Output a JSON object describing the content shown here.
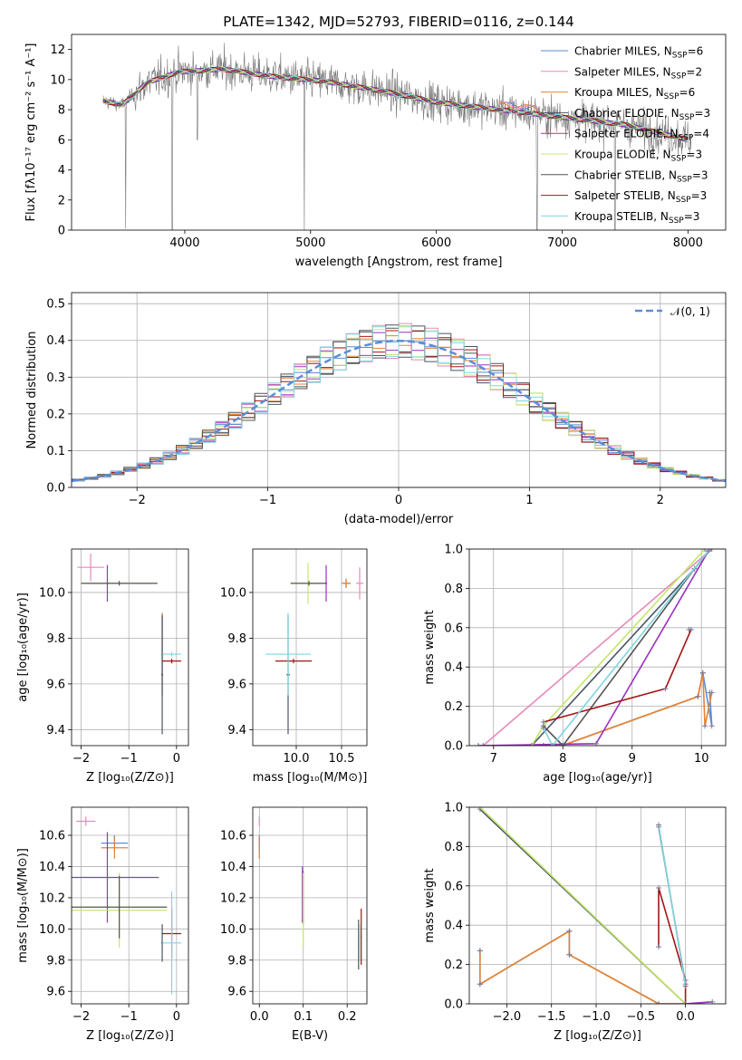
{
  "title": "PLATE=1342, MJD=52793, FIBERID=0116, z=0.144",
  "colors": {
    "chabrier_miles": "#5a8ed9",
    "salpeter_miles": "#e889b8",
    "kroupa_miles": "#e8822e",
    "chabrier_elodie": "#4b5565",
    "salpeter_elodie": "#9b33bf",
    "kroupa_elodie": "#c3e86a",
    "chabrier_stelib": "#555555",
    "salpeter_stelib": "#a51414",
    "kroupa_stelib": "#7fd6e0",
    "observed_spectrum": "#777777",
    "normal_curve": "#5a8ed9",
    "grid": "#b0b0b0"
  },
  "chart_data": [
    {
      "id": "spectrum",
      "type": "line",
      "xlabel": "wavelength [Angstrom, rest frame]",
      "ylabel": "Flux [fλ10⁻¹⁷ erg cm⁻² s⁻¹ A⁻¹]",
      "xlim": [
        3100,
        8300
      ],
      "ylim": [
        0,
        13
      ],
      "xticks": [
        4000,
        5000,
        6000,
        7000,
        8000
      ],
      "yticks": [
        0,
        2,
        4,
        6,
        8,
        10,
        12
      ],
      "grid": false,
      "legend_position": "top-right",
      "legend": [
        {
          "base": "Chabrier MILES, N",
          "sub": "SSP",
          "tail": "=6",
          "color_key": "chabrier_miles"
        },
        {
          "base": "Salpeter MILES, N",
          "sub": "SSP",
          "tail": "=2",
          "color_key": "salpeter_miles"
        },
        {
          "base": "Kroupa MILES, N",
          "sub": "SSP",
          "tail": "=6",
          "color_key": "kroupa_miles"
        },
        {
          "base": "Chabrier ELODIE, N",
          "sub": "SSP",
          "tail": "=3",
          "color_key": "chabrier_elodie"
        },
        {
          "base": "Salpeter ELODIE, N",
          "sub": "SSP",
          "tail": "=4",
          "color_key": "salpeter_elodie"
        },
        {
          "base": "Kroupa ELODIE, N",
          "sub": "SSP",
          "tail": "=3",
          "color_key": "kroupa_elodie"
        },
        {
          "base": "Chabrier STELIB, N",
          "sub": "SSP",
          "tail": "=3",
          "color_key": "chabrier_stelib"
        },
        {
          "base": "Salpeter STELIB, N",
          "sub": "SSP",
          "tail": "=3",
          "color_key": "salpeter_stelib"
        },
        {
          "base": "Kroupa STELIB, N",
          "sub": "SSP",
          "tail": "=3",
          "color_key": "kroupa_stelib"
        }
      ],
      "continuum_knots": [
        [
          3350,
          8.6
        ],
        [
          3500,
          8.3
        ],
        [
          3700,
          9.8
        ],
        [
          3950,
          10.5
        ],
        [
          4300,
          10.7
        ],
        [
          4700,
          10.2
        ],
        [
          5100,
          9.9
        ],
        [
          5600,
          9.2
        ],
        [
          6000,
          8.5
        ],
        [
          6500,
          8.0
        ],
        [
          7000,
          7.5
        ],
        [
          7500,
          7.0
        ],
        [
          8000,
          6.0
        ]
      ],
      "absorption_dips": [
        [
          3530,
          0.1
        ],
        [
          3900,
          0.0
        ],
        [
          4100,
          6.0
        ],
        [
          4950,
          0.0
        ],
        [
          6800,
          0.0
        ],
        [
          7420,
          0.0
        ]
      ]
    },
    {
      "id": "residuals",
      "type": "bar",
      "xlabel": "(data-model)/error",
      "ylabel": "Normed distribution",
      "xlim": [
        -2.5,
        2.5
      ],
      "ylim": [
        0,
        0.53
      ],
      "xticks": [
        -2,
        -1,
        0,
        1,
        2
      ],
      "yticks": [
        0.0,
        0.1,
        0.2,
        0.3,
        0.4,
        0.5
      ],
      "grid": true,
      "legend_position": "top-right",
      "legend_label": "𝒩(0, 1)",
      "bin_width": 0.1,
      "normal_mean": 0,
      "normal_sigma": 1
    },
    {
      "id": "age_vs_z",
      "type": "scatter",
      "xlabel": "Z [log₁₀(Z/Z⊙)]",
      "ylabel": "age  [log₁₀(age/yr)]",
      "xlim": [
        -2.2,
        0.25
      ],
      "ylim": [
        9.33,
        10.19
      ],
      "xticks": [
        -2,
        -1,
        0
      ],
      "yticks": [
        9.4,
        9.6,
        9.8,
        10.0
      ],
      "grid": true,
      "crosses": [
        {
          "key": "chabrier_miles",
          "x": -0.3,
          "xerr": 0.02,
          "y": 9.73,
          "yerr": 0.18
        },
        {
          "key": "salpeter_miles",
          "x": -1.8,
          "xerr": 0.28,
          "y": 10.11,
          "yerr": 0.06
        },
        {
          "key": "kroupa_miles",
          "x": -0.3,
          "xerr": 0.02,
          "y": 9.73,
          "yerr": 0.18
        },
        {
          "key": "chabrier_elodie",
          "x": -0.3,
          "xerr": 0.02,
          "y": 9.64,
          "yerr": 0.26
        },
        {
          "key": "salpeter_elodie",
          "x": -1.45,
          "xerr": 0.05,
          "y": 10.04,
          "yerr": 0.08
        },
        {
          "key": "kroupa_elodie",
          "x": -1.2,
          "xerr": 0.8,
          "y": 10.04,
          "yerr": 0.01
        },
        {
          "key": "chabrier_stelib",
          "x": -1.2,
          "xerr": 0.8,
          "y": 10.04,
          "yerr": 0.01
        },
        {
          "key": "salpeter_stelib",
          "x": -0.1,
          "xerr": 0.2,
          "y": 9.7,
          "yerr": 0.01
        },
        {
          "key": "kroupa_stelib",
          "x": -0.1,
          "xerr": 0.2,
          "y": 9.73,
          "yerr": 0.01
        }
      ]
    },
    {
      "id": "age_vs_mass",
      "type": "scatter",
      "xlabel": "mass [log₁₀(M/M⊙)]",
      "ylabel": "",
      "xlim": [
        9.52,
        10.78
      ],
      "ylim": [
        9.33,
        10.19
      ],
      "xticks": [
        10.0,
        10.5
      ],
      "yticks": [
        9.4,
        9.6,
        9.8,
        10.0
      ],
      "grid": true,
      "crosses": [
        {
          "key": "chabrier_miles",
          "x": 10.55,
          "xerr": 0.05,
          "y": 10.04,
          "yerr": 0.02
        },
        {
          "key": "salpeter_miles",
          "x": 10.7,
          "xerr": 0.04,
          "y": 10.04,
          "yerr": 0.07
        },
        {
          "key": "kroupa_miles",
          "x": 10.55,
          "xerr": 0.05,
          "y": 10.04,
          "yerr": 0.02
        },
        {
          "key": "chabrier_elodie",
          "x": 9.91,
          "xerr": 0.02,
          "y": 9.64,
          "yerr": 0.26
        },
        {
          "key": "salpeter_elodie",
          "x": 10.33,
          "xerr": 0.01,
          "y": 10.04,
          "yerr": 0.08
        },
        {
          "key": "kroupa_elodie",
          "x": 10.13,
          "xerr": 0.2,
          "y": 10.04,
          "yerr": 0.09
        },
        {
          "key": "chabrier_stelib",
          "x": 10.14,
          "xerr": 0.2,
          "y": 10.04,
          "yerr": 0.01
        },
        {
          "key": "salpeter_stelib",
          "x": 9.97,
          "xerr": 0.2,
          "y": 9.7,
          "yerr": 0.01
        },
        {
          "key": "kroupa_stelib",
          "x": 9.91,
          "xerr": 0.25,
          "y": 9.73,
          "yerr": 0.18
        }
      ]
    },
    {
      "id": "mass_weight_vs_age",
      "type": "line",
      "xlabel": "age  [log₁₀(age/yr)]",
      "ylabel": "mass weight",
      "xlim": [
        6.65,
        10.35
      ],
      "ylim": [
        0,
        1
      ],
      "xticks": [
        7,
        8,
        9,
        10
      ],
      "yticks": [
        0.0,
        0.2,
        0.4,
        0.6,
        0.8,
        1.0
      ],
      "grid": true,
      "series": [
        {
          "key": "chabrier_miles",
          "x": [
            7.72,
            7.99,
            9.95,
            10.02,
            10.15,
            10.12
          ],
          "y": [
            0.0,
            0.0,
            0.25,
            0.37,
            0.1,
            0.27
          ]
        },
        {
          "key": "salpeter_miles",
          "x": [
            6.85,
            10.15
          ],
          "y": [
            0.0,
            1.0
          ]
        },
        {
          "key": "kroupa_miles",
          "x": [
            7.72,
            7.99,
            9.95,
            10.02,
            10.05,
            10.15
          ],
          "y": [
            0.0,
            0.0,
            0.25,
            0.37,
            0.1,
            0.27
          ]
        },
        {
          "key": "chabrier_elodie",
          "x": [
            6.78,
            7.55,
            9.9,
            10.1
          ],
          "y": [
            0.0,
            0.0,
            0.9,
            0.99
          ]
        },
        {
          "key": "salpeter_elodie",
          "x": [
            6.78,
            8.48,
            10.1
          ],
          "y": [
            0.0,
            0.01,
            0.99
          ]
        },
        {
          "key": "kroupa_elodie",
          "x": [
            7.55,
            7.72,
            10.05
          ],
          "y": [
            0.0,
            0.1,
            1.0
          ]
        },
        {
          "key": "chabrier_stelib",
          "x": [
            7.72,
            8.0,
            9.9,
            10.1
          ],
          "y": [
            0.1,
            0.0,
            0.9,
            0.99
          ]
        },
        {
          "key": "salpeter_stelib",
          "x": [
            7.72,
            9.48,
            9.85,
            9.82
          ],
          "y": [
            0.12,
            0.29,
            0.59,
            0.59
          ]
        },
        {
          "key": "kroupa_stelib",
          "x": [
            7.72,
            7.85,
            10.1
          ],
          "y": [
            0.09,
            0.0,
            0.99
          ]
        }
      ]
    },
    {
      "id": "mass_vs_z",
      "type": "scatter",
      "xlabel": "Z [log₁₀(Z/Z⊙)]",
      "ylabel": "mass [log₁₀(M/M⊙)]",
      "xlim": [
        -2.2,
        0.25
      ],
      "ylim": [
        9.52,
        10.78
      ],
      "xticks": [
        -2,
        -1,
        0
      ],
      "yticks": [
        9.6,
        9.8,
        10.0,
        10.2,
        10.4,
        10.6
      ],
      "grid": true,
      "crosses": [
        {
          "key": "chabrier_miles",
          "x": -1.3,
          "xerr": 0.28,
          "y": 10.55,
          "yerr": 0.05
        },
        {
          "key": "salpeter_miles",
          "x": -1.9,
          "xerr": 0.2,
          "y": 10.69,
          "yerr": 0.03
        },
        {
          "key": "kroupa_miles",
          "x": -1.3,
          "xerr": 0.28,
          "y": 10.52,
          "yerr": 0.07
        },
        {
          "key": "chabrier_elodie",
          "x": -0.3,
          "xerr": 0.02,
          "y": 9.91,
          "yerr": 0.12
        },
        {
          "key": "salpeter_elodie",
          "x": -1.45,
          "xerr": 1.08,
          "y": 10.33,
          "yerr": 0.29
        },
        {
          "key": "kroupa_elodie",
          "x": -1.2,
          "xerr": 1.0,
          "y": 10.12,
          "yerr": 0.24
        },
        {
          "key": "chabrier_stelib",
          "x": -1.2,
          "xerr": 1.0,
          "y": 10.14,
          "yerr": 0.2
        },
        {
          "key": "salpeter_stelib",
          "x": -0.1,
          "xerr": 0.2,
          "y": 9.97,
          "yerr": 0.16
        },
        {
          "key": "kroupa_stelib",
          "x": -0.1,
          "xerr": 0.2,
          "y": 9.91,
          "yerr": 0.33
        }
      ]
    },
    {
      "id": "mass_vs_ebv",
      "type": "scatter",
      "xlabel": "E(B-V)",
      "ylabel": "",
      "xlim": [
        -0.015,
        0.245
      ],
      "ylim": [
        9.52,
        10.78
      ],
      "xticks": [
        0.0,
        0.1,
        0.2
      ],
      "yticks": [
        9.6,
        9.8,
        10.0,
        10.2,
        10.4,
        10.6
      ],
      "grid": true,
      "crosses": [
        {
          "key": "chabrier_miles",
          "x": 0.0,
          "xerr": 0.001,
          "y": 10.55,
          "yerr": 0.05
        },
        {
          "key": "salpeter_miles",
          "x": 0.0,
          "xerr": 0.001,
          "y": 10.69,
          "yerr": 0.03
        },
        {
          "key": "kroupa_miles",
          "x": 0.0,
          "xerr": 0.001,
          "y": 10.52,
          "yerr": 0.07
        },
        {
          "key": "chabrier_elodie",
          "x": 0.1,
          "xerr": 0.001,
          "y": 10.2,
          "yerr": 0.17
        },
        {
          "key": "salpeter_elodie",
          "x": 0.098,
          "xerr": 0.001,
          "y": 10.22,
          "yerr": 0.18
        },
        {
          "key": "kroupa_elodie",
          "x": 0.1,
          "xerr": 0.001,
          "y": 10.12,
          "yerr": 0.24
        },
        {
          "key": "chabrier_stelib",
          "x": 0.226,
          "xerr": 0.001,
          "y": 9.9,
          "yerr": 0.16
        },
        {
          "key": "salpeter_stelib",
          "x": 0.232,
          "xerr": 0.001,
          "y": 9.95,
          "yerr": 0.18
        },
        {
          "key": "kroupa_stelib",
          "x": 0.228,
          "xerr": 0.001,
          "y": 9.91,
          "yerr": 0.12
        }
      ]
    },
    {
      "id": "mass_weight_vs_z",
      "type": "line",
      "xlabel": "Z [log₁₀(Z/Z⊙)]",
      "ylabel": "mass weight",
      "xlim": [
        -2.42,
        0.45
      ],
      "ylim": [
        0,
        1
      ],
      "xticks": [
        -2.0,
        -1.5,
        -1.0,
        -0.5,
        0.0
      ],
      "yticks": [
        0.0,
        0.2,
        0.4,
        0.6,
        0.8,
        1.0
      ],
      "grid": true,
      "series": [
        {
          "key": "chabrier_miles",
          "x": [
            -2.3,
            -2.3,
            -1.3,
            -1.3,
            -0.3,
            0.0
          ],
          "y": [
            0.27,
            0.1,
            0.37,
            0.25,
            0.0,
            0.0
          ]
        },
        {
          "key": "kroupa_miles",
          "x": [
            -2.3,
            -2.3,
            -1.3,
            -1.3,
            -0.3,
            0.0
          ],
          "y": [
            0.27,
            0.1,
            0.37,
            0.25,
            0.0,
            0.0
          ]
        },
        {
          "key": "salpeter_elodie",
          "x": [
            0.0,
            0.3
          ],
          "y": [
            0.0,
            0.01
          ]
        },
        {
          "key": "chabrier_elodie",
          "x": [
            -2.3,
            0.0
          ],
          "y": [
            0.99,
            0.0
          ]
        },
        {
          "key": "kroupa_elodie",
          "x": [
            -2.3,
            0.0
          ],
          "y": [
            1.0,
            0.0
          ]
        },
        {
          "key": "chabrier_stelib",
          "x": [
            -0.3,
            0.0
          ],
          "y": [
            0.9,
            0.1
          ]
        },
        {
          "key": "salpeter_stelib",
          "x": [
            -0.3,
            -0.3,
            0.0,
            0.0
          ],
          "y": [
            0.29,
            0.59,
            0.12,
            0.0
          ]
        },
        {
          "key": "kroupa_stelib",
          "x": [
            -0.3,
            0.0
          ],
          "y": [
            0.91,
            0.09
          ]
        }
      ]
    }
  ]
}
